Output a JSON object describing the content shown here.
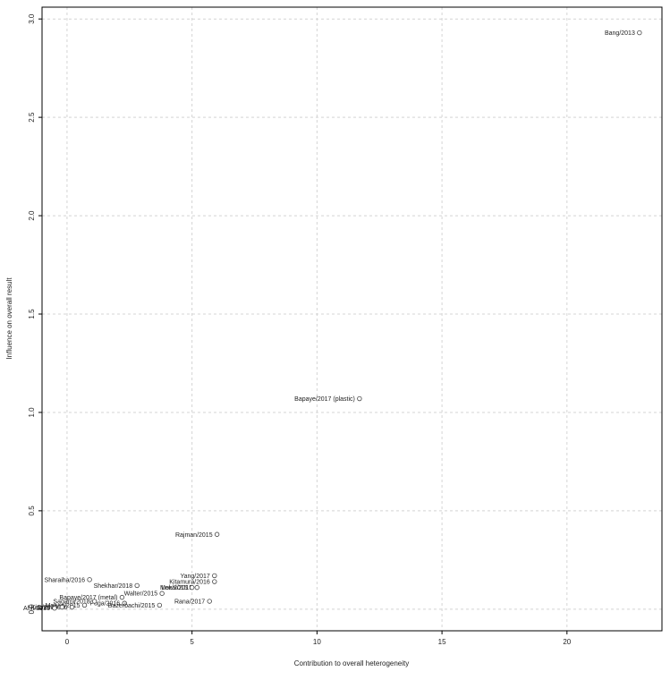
{
  "chart_data": {
    "type": "scatter",
    "title": "",
    "xlabel": "Contribution to overall heterogeneity",
    "ylabel": "Influence on overall result",
    "xlim": [
      -1,
      23.8
    ],
    "ylim": [
      -0.11,
      3.06
    ],
    "xticks": [
      "0",
      "5",
      "10",
      "15",
      "20"
    ],
    "xtick_values": [
      0,
      5,
      10,
      15,
      20
    ],
    "yticks": [
      "0.0",
      "0.5",
      "1.0",
      "1.5",
      "2.0",
      "2.5",
      "3.0"
    ],
    "ytick_values": [
      0.0,
      0.5,
      1.0,
      1.5,
      2.0,
      2.5,
      3.0
    ],
    "grid": true,
    "points": [
      {
        "label": "Bang/2013",
        "x": 22.9,
        "y": 2.93
      },
      {
        "label": "Bapaye/2017 (plastic)",
        "x": 11.7,
        "y": 1.07
      },
      {
        "label": "Rajman/2015",
        "x": 6.0,
        "y": 0.38
      },
      {
        "label": "Yang/2017",
        "x": 5.9,
        "y": 0.17
      },
      {
        "label": "Kitamura/2016",
        "x": 5.9,
        "y": 0.14
      },
      {
        "label": "Mukai/2015",
        "x": 5.2,
        "y": 0.11
      },
      {
        "label": "Lee/2015",
        "x": 5.0,
        "y": 0.11
      },
      {
        "label": "Rana/2017",
        "x": 5.7,
        "y": 0.04
      },
      {
        "label": "Shekhar/2018",
        "x": 2.8,
        "y": 0.12
      },
      {
        "label": "Sharaiha/2016",
        "x": 0.9,
        "y": 0.15
      },
      {
        "label": "Walter/2015",
        "x": 3.8,
        "y": 0.08
      },
      {
        "label": "Bapaye/2017 (metal)",
        "x": 2.2,
        "y": 0.06
      },
      {
        "label": "Puga/2016",
        "x": 2.3,
        "y": 0.03
      },
      {
        "label": "Bazerbachi/2015",
        "x": 3.7,
        "y": 0.02
      },
      {
        "label": "Sagami/2018",
        "x": 1.1,
        "y": 0.04
      },
      {
        "label": "Mohan/2015",
        "x": 0.7,
        "y": 0.02
      },
      {
        "label": "Chen/2016",
        "x": 0.2,
        "y": 0.01
      },
      {
        "label": "Kim/2016",
        "x": -0.2,
        "y": 0.01
      },
      {
        "label": "Ahn/2015",
        "x": -0.5,
        "y": 0.005
      }
    ]
  }
}
